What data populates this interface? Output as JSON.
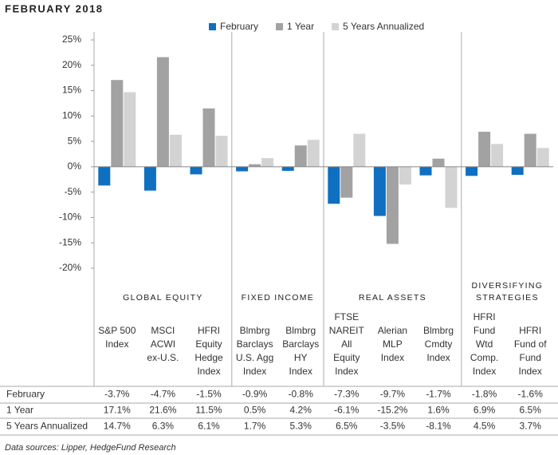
{
  "chart_data": {
    "type": "bar",
    "title": "FEBRUARY 2018",
    "footnote": "Data sources: Lipper, HedgeFund Research",
    "groups": [
      {
        "label": [
          "GLOBAL EQUITY"
        ],
        "categories": [
          [
            "S&P 500",
            "Index"
          ],
          [
            "MSCI",
            "ACWI",
            "ex-U.S."
          ],
          [
            "HFRI",
            "Equity",
            "Hedge",
            "Index"
          ]
        ]
      },
      {
        "label": [
          "FIXED INCOME"
        ],
        "categories": [
          [
            "Blmbrg",
            "Barclays",
            "U.S. Agg",
            "Index"
          ],
          [
            "Blmbrg",
            "Barclays",
            "HY",
            "Index"
          ]
        ]
      },
      {
        "label": [
          "REAL ASSETS"
        ],
        "categories": [
          [
            "FTSE",
            "NAREIT",
            "All",
            "Equity",
            "Index"
          ],
          [
            "Alerian",
            "MLP",
            "Index"
          ],
          [
            "Blmbrg",
            "Cmdty",
            "Index"
          ]
        ]
      },
      {
        "label": [
          "DIVERSIFYING",
          "STRATEGIES"
        ],
        "categories": [
          [
            "HFRI",
            "Fund",
            "Wtd",
            "Comp.",
            "Index"
          ],
          [
            "HFRI",
            "Fund of",
            "Fund",
            "Index"
          ]
        ]
      }
    ],
    "series": [
      {
        "name": "February",
        "color": "#0f6fc0",
        "values": [
          -3.7,
          -4.7,
          -1.5,
          -0.9,
          -0.8,
          -7.3,
          -9.7,
          -1.7,
          -1.8,
          -1.6
        ],
        "value_labels": [
          "-3.7%",
          "-4.7%",
          "-1.5%",
          "-0.9%",
          "-0.8%",
          "-7.3%",
          "-9.7%",
          "-1.7%",
          "-1.8%",
          "-1.6%"
        ]
      },
      {
        "name": "1 Year",
        "color": "#a2a2a2",
        "values": [
          17.1,
          21.6,
          11.5,
          0.5,
          4.2,
          -6.1,
          -15.2,
          1.6,
          6.9,
          6.5
        ],
        "value_labels": [
          "17.1%",
          "21.6%",
          "11.5%",
          "0.5%",
          "4.2%",
          "-6.1%",
          "-15.2%",
          "1.6%",
          "6.9%",
          "6.5%"
        ]
      },
      {
        "name": "5 Years Annualized",
        "color": "#d3d3d3",
        "values": [
          14.7,
          6.3,
          6.1,
          1.7,
          5.3,
          6.5,
          -3.5,
          -8.1,
          4.5,
          3.7
        ],
        "value_labels": [
          "14.7%",
          "6.3%",
          "6.1%",
          "1.7%",
          "5.3%",
          "6.5%",
          "-3.5%",
          "-8.1%",
          "4.5%",
          "3.7%"
        ]
      }
    ],
    "ylim": [
      -20,
      25
    ],
    "yticks": [
      {
        "value": 25,
        "label": "25%"
      },
      {
        "value": 20,
        "label": "20%"
      },
      {
        "value": 15,
        "label": "15%"
      },
      {
        "value": 10,
        "label": "10%"
      },
      {
        "value": 5,
        "label": "5%"
      },
      {
        "value": 0,
        "label": "0%"
      },
      {
        "value": -5,
        "label": "-5%"
      },
      {
        "value": -10,
        "label": "-10%"
      },
      {
        "value": -15,
        "label": "-15%"
      },
      {
        "value": -20,
        "label": "-20%"
      }
    ],
    "grid": false
  }
}
